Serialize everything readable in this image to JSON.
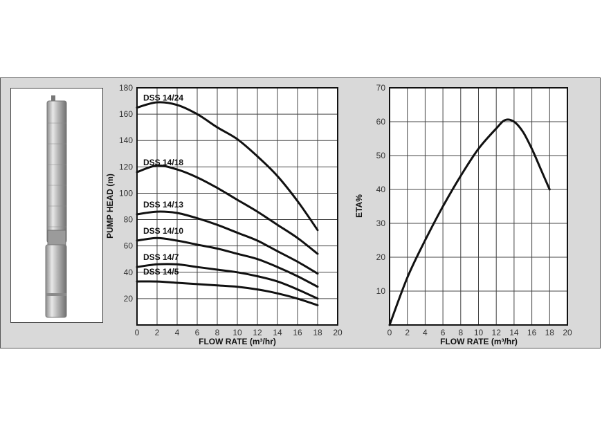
{
  "colors": {
    "panel_bg": "#d9d9d9",
    "plot_bg": "#ffffff",
    "curve": "#111111",
    "grid": "#444444"
  },
  "pump_image": {
    "icon": "submersible-pump-image"
  },
  "chart_data": [
    {
      "type": "line",
      "title": "",
      "xlabel": "FLOW RATE (m³/hr)",
      "ylabel": "PUMP HEAD (m)",
      "xlim": [
        0,
        20
      ],
      "ylim": [
        0,
        180
      ],
      "xticks": [
        "0",
        "2",
        "4",
        "6",
        "8",
        "10",
        "12",
        "14",
        "16",
        "18",
        "20"
      ],
      "yticks": [
        "0",
        "20",
        "40",
        "60",
        "80",
        "100",
        "120",
        "140",
        "160",
        "180"
      ],
      "grid": true,
      "series": [
        {
          "name": "DSS 14/24",
          "x": [
            0,
            2,
            4,
            6,
            8,
            10,
            12,
            14,
            16,
            18
          ],
          "y": [
            165,
            169,
            167,
            160,
            150,
            141,
            128,
            113,
            94,
            72
          ]
        },
        {
          "name": "DSS 14/18",
          "x": [
            0,
            2,
            4,
            6,
            8,
            10,
            12,
            14,
            16,
            18
          ],
          "y": [
            116,
            121,
            118,
            112,
            104,
            95,
            86,
            76,
            66,
            54
          ]
        },
        {
          "name": "DSS 14/13",
          "x": [
            0,
            2,
            4,
            6,
            8,
            10,
            12,
            14,
            16,
            18
          ],
          "y": [
            84,
            86,
            85,
            81,
            76,
            70,
            64,
            56,
            48,
            39
          ]
        },
        {
          "name": "DSS 14/10",
          "x": [
            0,
            2,
            4,
            6,
            8,
            10,
            12,
            14,
            16,
            18
          ],
          "y": [
            64,
            66,
            64,
            61,
            58,
            54,
            50,
            44,
            37,
            29
          ]
        },
        {
          "name": "DSS 14/7",
          "x": [
            0,
            2,
            4,
            6,
            8,
            10,
            12,
            14,
            16,
            18
          ],
          "y": [
            44,
            46,
            46,
            44,
            42,
            40,
            37,
            33,
            27,
            20
          ]
        },
        {
          "name": "DSS 14/5",
          "x": [
            0,
            2,
            4,
            6,
            8,
            10,
            12,
            14,
            16,
            18
          ],
          "y": [
            33,
            33,
            32,
            31,
            30,
            29,
            27,
            24,
            20,
            15
          ]
        }
      ]
    },
    {
      "type": "line",
      "title": "",
      "xlabel": "FLOW RATE (m³/hr)",
      "ylabel": "ETA%",
      "xlim": [
        0,
        20
      ],
      "ylim": [
        0,
        70
      ],
      "xticks": [
        "0",
        "2",
        "4",
        "6",
        "8",
        "10",
        "12",
        "14",
        "16",
        "18",
        "20"
      ],
      "yticks": [
        "10",
        "20",
        "30",
        "40",
        "50",
        "60",
        "70"
      ],
      "grid": true,
      "series": [
        {
          "x": [
            0,
            2,
            4,
            6,
            8,
            10,
            12,
            13,
            14,
            15,
            16,
            17,
            18
          ],
          "y": [
            0,
            14,
            25,
            35,
            44,
            52,
            58,
            60.5,
            60,
            57,
            52,
            46,
            40
          ]
        }
      ]
    }
  ]
}
